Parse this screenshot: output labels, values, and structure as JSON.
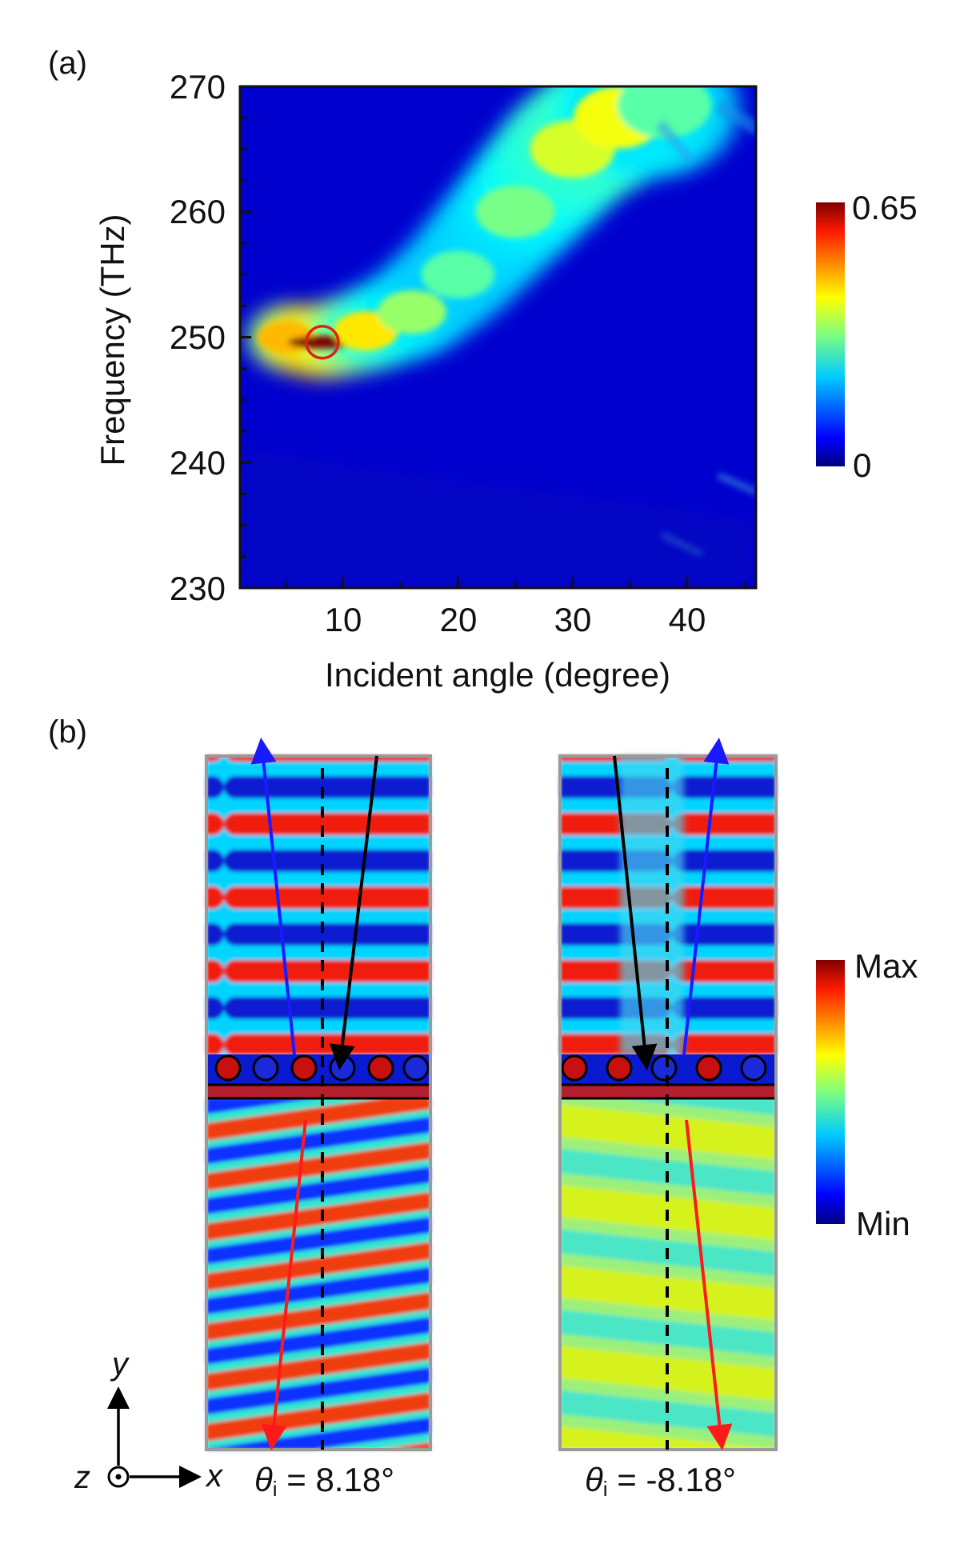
{
  "chart_data": [
    {
      "panel": "(a)",
      "type": "heatmap",
      "xlabel": "Incident angle (degree)",
      "ylabel": "Frequency (THz)",
      "xlim": [
        1,
        46
      ],
      "ylim": [
        230,
        270
      ],
      "x_ticks": [
        "10",
        "20",
        "30",
        "40"
      ],
      "y_ticks": [
        "230",
        "240",
        "250",
        "260",
        "270"
      ],
      "colorbar": {
        "min_label": "0",
        "max_label": "0.65",
        "min": 0,
        "max": 0.65,
        "colormap": "jet"
      },
      "ridge": [
        {
          "x": 5,
          "y": 250.0,
          "value": 0.45
        },
        {
          "x": 8.18,
          "y": 249.6,
          "value": 0.65
        },
        {
          "x": 12,
          "y": 250.5,
          "value": 0.42
        },
        {
          "x": 16,
          "y": 252.0,
          "value": 0.34
        },
        {
          "x": 20,
          "y": 255.0,
          "value": 0.3
        },
        {
          "x": 25,
          "y": 260.0,
          "value": 0.32
        },
        {
          "x": 30,
          "y": 265.0,
          "value": 0.38
        },
        {
          "x": 34,
          "y": 267.5,
          "value": 0.4
        },
        {
          "x": 38,
          "y": 268.5,
          "value": 0.3
        }
      ],
      "background_value": 0.05,
      "annotation": {
        "marker": "circle",
        "color": "#e0201b",
        "x": 8.18,
        "y": 249.6
      }
    },
    {
      "panel": "(b)",
      "type": "heatmap",
      "colorbar": {
        "min_label": "Min",
        "max_label": "Max",
        "colormap": "jet"
      },
      "subplots": [
        {
          "theta_symbol": "θ",
          "theta_sub": "i",
          "theta_value": " = 8.18°"
        },
        {
          "theta_symbol": "θ",
          "theta_sub": "i",
          "theta_value": " = -8.18°"
        }
      ],
      "axes_legend": {
        "y": "y",
        "z": "z",
        "x": "x"
      },
      "arrow_colors": {
        "incident": "#000000",
        "reflected": "#1a1aff",
        "transmitted": "#ff1a1a"
      }
    }
  ]
}
